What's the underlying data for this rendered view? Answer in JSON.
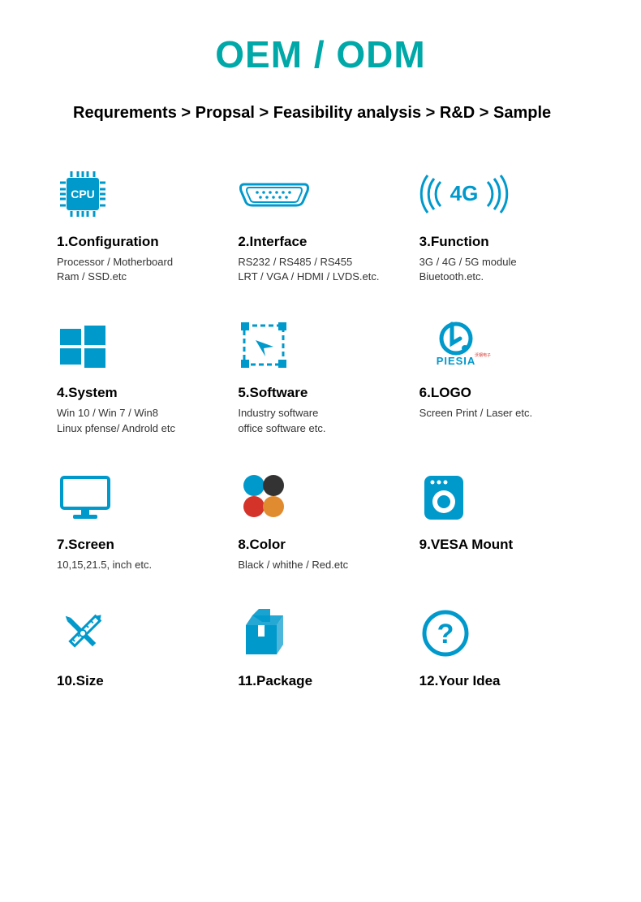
{
  "colors": {
    "accent": "#0099cc",
    "accent2": "#00a8a8",
    "black": "#000000",
    "dark": "#333333",
    "red": "#d4332a",
    "orange": "#e08b2f"
  },
  "header": {
    "title": "OEM / ODM"
  },
  "breadcrumb": "Requrements > Propsal > Feasibility analysis > R&D > Sample",
  "items": [
    {
      "icon": "cpu",
      "title": "1.Configuration",
      "desc": "Processor / Motherboard\nRam / SSD.etc"
    },
    {
      "icon": "port",
      "title": "2.Interface",
      "desc": "RS232 / RS485 / RS455\nLRT / VGA / HDMI / LVDS.etc."
    },
    {
      "icon": "4g",
      "title": "3.Function",
      "desc": "3G / 4G / 5G module\nBiuetooth.etc."
    },
    {
      "icon": "windows",
      "title": "4.System",
      "desc": "Win 10 / Win 7 / Win8\nLinux pfense/ Androld etc"
    },
    {
      "icon": "software",
      "title": "5.Software",
      "desc": "Industry software\noffice software etc."
    },
    {
      "icon": "logo",
      "title": "6.LOGO",
      "desc": "Screen Print / Laser etc."
    },
    {
      "icon": "screen",
      "title": "7.Screen",
      "desc": "10,15,21.5, inch etc."
    },
    {
      "icon": "color",
      "title": "8.Color",
      "desc": "Black / whithe / Red.etc"
    },
    {
      "icon": "vesa",
      "title": "9.VESA Mount",
      "desc": ""
    },
    {
      "icon": "size",
      "title": "10.Size",
      "desc": ""
    },
    {
      "icon": "package",
      "title": "11.Package",
      "desc": ""
    },
    {
      "icon": "idea",
      "title": "12.Your Idea",
      "desc": ""
    }
  ]
}
